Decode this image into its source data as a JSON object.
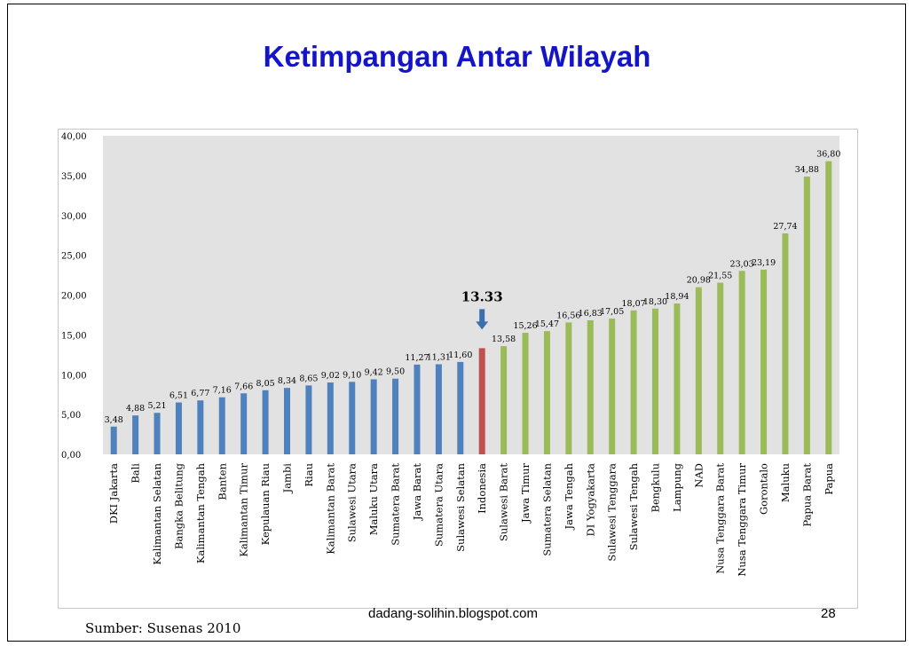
{
  "slide": {
    "title": "Ketimpangan Antar Wilayah",
    "footer_url": "dadang-solihin.blogspot.com",
    "page_number": "28",
    "source": "Sumber: Susenas 2010"
  },
  "colors": {
    "title": "#1515c8",
    "plot_background": "#e2e2e2",
    "below_average": "#4f81bd",
    "national": "#c0504d",
    "above_average": "#9bbb59",
    "arrow": "#3a6fb0"
  },
  "chart_data": {
    "type": "bar",
    "title": "",
    "xlabel": "",
    "ylabel": "",
    "ylim": [
      0,
      40
    ],
    "ytick_step": 5,
    "ytick_labels": [
      "0,00",
      "5,00",
      "10,00",
      "15,00",
      "20,00",
      "25,00",
      "30,00",
      "35,00",
      "40,00"
    ],
    "grid": false,
    "categories": [
      "DKI Jakarta",
      "Bali",
      "Kalimantan Selatan",
      "Bangka Belitung",
      "Kalimantan Tengah",
      "Banten",
      "Kalimantan Timur",
      "Kepulauan Riau",
      "Jambi",
      "Riau",
      "Kalimantan Barat",
      "Sulawesi Utara",
      "Maluku Utara",
      "Sumatera Barat",
      "Jawa Barat",
      "Sumatera Utara",
      "Sulawesi Selatan",
      "Indonesia",
      "Sulawesi Barat",
      "Jawa Timur",
      "Sumatera Selatan",
      "Jawa Tengah",
      "DI Yogyakarta",
      "Sulawesi Tenggara",
      "Sulawesi Tengah",
      "Bengkulu",
      "Lampung",
      "NAD",
      "Nusa Tenggara Barat",
      "Nusa Tenggara Timur",
      "Gorontalo",
      "Maluku",
      "Papua Barat",
      "Papua"
    ],
    "values": [
      3.48,
      4.88,
      5.21,
      6.51,
      6.77,
      7.16,
      7.66,
      8.05,
      8.34,
      8.65,
      9.02,
      9.1,
      9.42,
      9.5,
      11.27,
      11.31,
      11.6,
      13.33,
      13.58,
      15.26,
      15.47,
      16.56,
      16.83,
      17.05,
      18.07,
      18.3,
      18.94,
      20.98,
      21.55,
      23.03,
      23.19,
      27.74,
      34.88,
      36.8
    ],
    "value_labels": [
      "3,48",
      "4,88",
      "5,21",
      "6,51",
      "6,77",
      "7,16",
      "7,66",
      "8,05",
      "8,34",
      "8,65",
      "9,02",
      "9,10",
      "9,42",
      "9,50",
      "11,27",
      "11,31",
      "11,60",
      "",
      "13,58",
      "15,26",
      "15,47",
      "16,56",
      "16,83",
      "17,05",
      "18,07",
      "18,30",
      "18,94",
      "20,98",
      "21,55",
      "23,03",
      "23,19",
      "27,74",
      "34,88",
      "36,80"
    ],
    "highlight": {
      "category": "Indonesia",
      "label": "13.33",
      "value": 13.33
    }
  }
}
